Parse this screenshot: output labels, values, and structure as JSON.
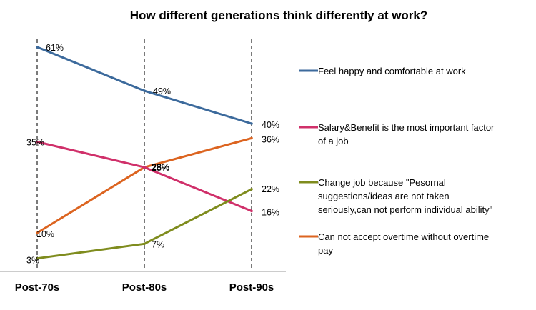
{
  "chart_data": {
    "type": "line",
    "title": "How different generations think differently at work?",
    "categories": [
      "Post-70s",
      "Post-80s",
      "Post-90s"
    ],
    "ylim": [
      0,
      70
    ],
    "grid": false,
    "legend_position": "right",
    "series": [
      {
        "name": "Feel happy and comfortable at work",
        "legend_lines": [
          "Feel happy and comfortable at work"
        ],
        "color": "#3c6a9c",
        "values": [
          61,
          49,
          40
        ],
        "labels": [
          "61%",
          "49%",
          "40%"
        ]
      },
      {
        "name": "Salary&Benefit is the most important factor of a job",
        "legend_lines": [
          "Salary&Benefit is the most important factor",
          "of a job"
        ],
        "color": "#d0306a",
        "values": [
          35,
          28,
          16
        ],
        "labels": [
          "35%",
          "28%",
          "16%"
        ]
      },
      {
        "name": "Change job because \"Pesornal suggestions/ideas are not taken seriously,can not perform individual ability\"",
        "legend_lines": [
          "Change job because \"Pesornal",
          "suggestions/ideas are not taken",
          "seriously,can not perform individual ability\""
        ],
        "color": "#7f8c1e",
        "values": [
          3,
          7,
          22
        ],
        "labels": [
          "3%",
          "7%",
          "22%"
        ]
      },
      {
        "name": "Can not accept overtime without overtime pay",
        "legend_lines": [
          "Can not accept overtime without overtime",
          "pay"
        ],
        "color": "#dc6420",
        "values": [
          10,
          28,
          36
        ],
        "labels": [
          "10%",
          "28%",
          "36%"
        ]
      }
    ]
  }
}
